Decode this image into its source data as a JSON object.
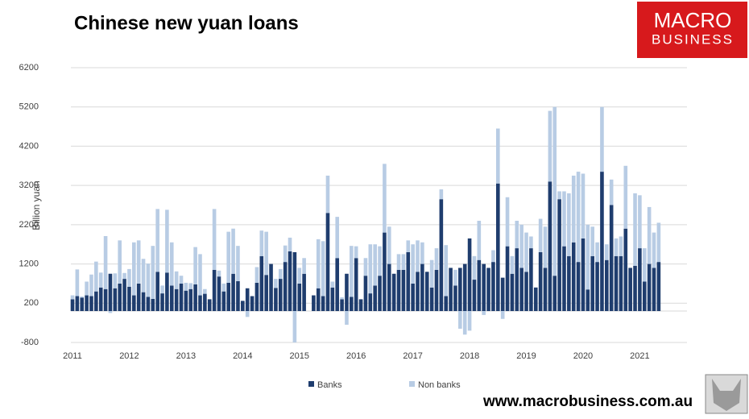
{
  "chart_data": {
    "type": "bar",
    "stacked": true,
    "title": "Chinese new yuan loans",
    "y_label": "Billion yuan",
    "categories": [
      "2011",
      null,
      null,
      null,
      null,
      null,
      null,
      null,
      null,
      null,
      null,
      null,
      "2012",
      null,
      null,
      null,
      null,
      null,
      null,
      null,
      null,
      null,
      null,
      null,
      "2013",
      null,
      null,
      null,
      null,
      null,
      null,
      null,
      null,
      null,
      null,
      null,
      "2014",
      null,
      null,
      null,
      null,
      null,
      null,
      null,
      null,
      null,
      null,
      null,
      "2015",
      null,
      null,
      null,
      null,
      null,
      null,
      null,
      null,
      null,
      null,
      null,
      "2016",
      null,
      null,
      null,
      null,
      null,
      null,
      null,
      null,
      null,
      null,
      null,
      "2017",
      null,
      null,
      null,
      null,
      null,
      null,
      null,
      null,
      null,
      null,
      null,
      "2018",
      null,
      null,
      null,
      null,
      null,
      null,
      null,
      null,
      null,
      null,
      null,
      "2019",
      null,
      null,
      null,
      null,
      null,
      null,
      null,
      null,
      null,
      null,
      null,
      "2020",
      null,
      null,
      null,
      null,
      null,
      null,
      null,
      null,
      null,
      null,
      null,
      "2021",
      null,
      null,
      null,
      null
    ],
    "series": [
      {
        "name": "Banks",
        "color": "#1f3d6e",
        "values": [
          300,
          380,
          340,
          400,
          380,
          500,
          600,
          560,
          950,
          580,
          700,
          820,
          620,
          400,
          700,
          480,
          360,
          310,
          1000,
          450,
          980,
          650,
          560,
          700,
          520,
          560,
          680,
          400,
          440,
          300,
          1050,
          880,
          500,
          720,
          950,
          760,
          260,
          580,
          380,
          720,
          1400,
          920,
          1200,
          590,
          820,
          1250,
          1520,
          1500,
          700,
          950,
          0,
          400,
          580,
          380,
          2500,
          600,
          1350,
          300,
          950,
          360,
          1350,
          300,
          900,
          450,
          650,
          900,
          2000,
          1200,
          950,
          1050,
          1050,
          1500,
          700,
          1000,
          1200,
          1000,
          600,
          1050,
          2850,
          380,
          1100,
          650,
          1100,
          1200,
          1850,
          800,
          1300,
          1200,
          1100,
          1250,
          3250,
          850,
          1650,
          950,
          1600,
          1100,
          1000,
          1600,
          600,
          1500,
          1100,
          3300,
          900,
          2850,
          1650,
          1400,
          1750,
          1250,
          1850,
          550,
          1400,
          1250,
          3550,
          1300,
          2700,
          1400,
          1400,
          2100,
          1100,
          1150,
          1600,
          750,
          1200,
          1100,
          1250
        ]
      },
      {
        "name": "Non banks",
        "color": "#b8cce4",
        "values": [
          100,
          680,
          30,
          350,
          550,
          760,
          380,
          1350,
          -50,
          380,
          1100,
          150,
          450,
          1350,
          1100,
          850,
          850,
          1350,
          1600,
          200,
          1600,
          1100,
          450,
          200,
          200,
          150,
          950,
          1050,
          120,
          0,
          1550,
          150,
          200,
          1300,
          1150,
          900,
          0,
          -150,
          0,
          400,
          650,
          1100,
          0,
          230,
          250,
          420,
          350,
          -800,
          400,
          400,
          0,
          0,
          1250,
          1400,
          950,
          150,
          1050,
          50,
          -350,
          1300,
          300,
          0,
          450,
          1250,
          1050,
          750,
          1750,
          950,
          0,
          400,
          400,
          300,
          1000,
          800,
          550,
          0,
          700,
          550,
          250,
          1300,
          0,
          400,
          -450,
          -600,
          -500,
          600,
          1000,
          -100,
          0,
          300,
          1400,
          -200,
          1250,
          450,
          700,
          1100,
          1000,
          300,
          0,
          850,
          1050,
          1800,
          4300,
          200,
          1400,
          1600,
          1700,
          2300,
          1650,
          1650,
          750,
          500,
          1650,
          400,
          650,
          450,
          500,
          1600,
          0,
          1850,
          1350,
          850,
          1450,
          900,
          1000
        ]
      }
    ],
    "ylim": [
      -800,
      6200
    ],
    "yticks": [
      -800,
      200,
      1200,
      2200,
      3200,
      4200,
      5200,
      6200
    ],
    "grid": true,
    "legend": "bottom"
  },
  "logo": {
    "line1": "MACRO",
    "line2": "BUSINESS"
  },
  "footer": {
    "url": "www.macrobusiness.com.au"
  }
}
